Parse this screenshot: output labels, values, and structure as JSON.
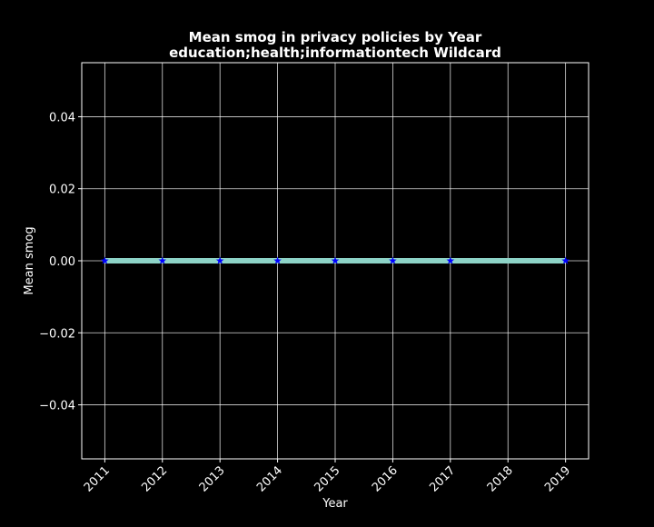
{
  "chart_data": {
    "type": "line",
    "title": "Mean smog in privacy policies by Year",
    "subtitle": "education;health;informationtech Wildcard",
    "xlabel": "Year",
    "ylabel": "Mean smog",
    "x": [
      2011,
      2012,
      2013,
      2014,
      2015,
      2016,
      2017,
      2018,
      2019
    ],
    "x_ticks": [
      "2011",
      "2012",
      "2013",
      "2014",
      "2015",
      "2016",
      "2017",
      "2018",
      "2019"
    ],
    "y_ticks": [
      "−0.04",
      "−0.02",
      "0.00",
      "0.02",
      "0.04"
    ],
    "y_tick_values": [
      -0.04,
      -0.02,
      0.0,
      0.02,
      0.04
    ],
    "xlim": [
      2010.6,
      2019.4
    ],
    "ylim": [
      -0.055,
      0.055
    ],
    "grid": true,
    "series": [
      {
        "values": [
          0,
          0,
          0,
          0,
          0,
          0,
          0,
          0,
          0
        ],
        "markers_at": [
          2011,
          2012,
          2013,
          2014,
          2015,
          2016,
          2017,
          2019
        ]
      }
    ],
    "colors": {
      "background": "#000000",
      "line": "#8dd3c7",
      "marker": "#0000ff",
      "grid": "#ffffff",
      "text": "#ffffff"
    }
  }
}
